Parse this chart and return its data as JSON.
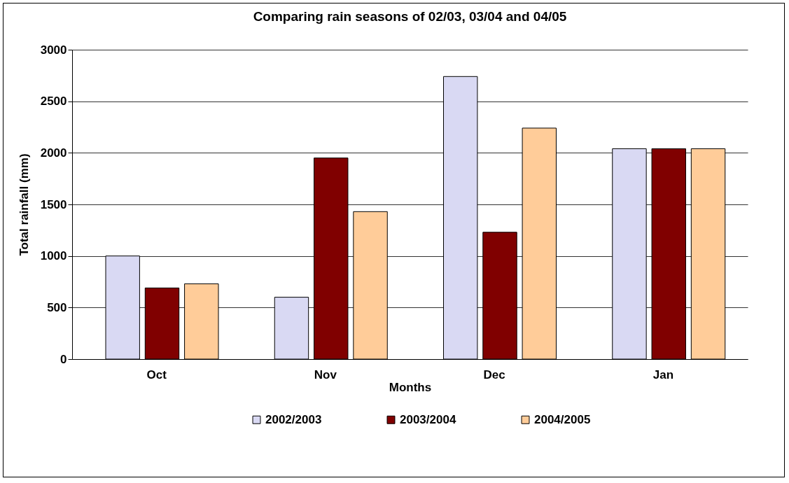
{
  "chart_data": {
    "type": "bar",
    "title": "Comparing rain seasons of 02/03, 03/04 and 04/05",
    "xlabel": "Months",
    "ylabel": "Total rainfall (mm)",
    "categories": [
      "Oct",
      "Nov",
      "Dec",
      "Jan"
    ],
    "series": [
      {
        "name": "2002/2003",
        "color": "#d9d9f3",
        "values": [
          1000,
          600,
          2740,
          2040
        ]
      },
      {
        "name": "2003/2004",
        "color": "#800000",
        "values": [
          690,
          1950,
          1230,
          2040
        ]
      },
      {
        "name": "2004/2005",
        "color": "#ffcc99",
        "values": [
          730,
          1430,
          2240,
          2040
        ]
      }
    ],
    "ylim": [
      0,
      3000
    ],
    "yticks": [
      0,
      500,
      1000,
      1500,
      2000,
      2500,
      3000
    ],
    "grid": "y",
    "legend": "bottom"
  }
}
